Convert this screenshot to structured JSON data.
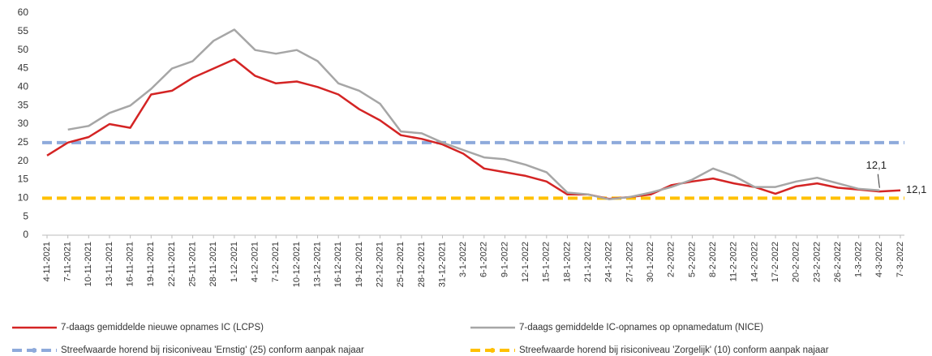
{
  "chart_data": {
    "type": "line",
    "categories": [
      "4-11-2021",
      "7-11-2021",
      "10-11-2021",
      "13-11-2021",
      "16-11-2021",
      "19-11-2021",
      "22-11-2021",
      "25-11-2021",
      "28-11-2021",
      "1-12-2021",
      "4-12-2021",
      "7-12-2021",
      "10-12-2021",
      "13-12-2021",
      "16-12-2021",
      "19-12-2021",
      "22-12-2021",
      "25-12-2021",
      "28-12-2021",
      "31-12-2021",
      "3-1-2022",
      "6-1-2022",
      "9-1-2022",
      "12-1-2022",
      "15-1-2022",
      "18-1-2022",
      "21-1-2022",
      "24-1-2022",
      "27-1-2022",
      "30-1-2022",
      "2-2-2022",
      "5-2-2022",
      "8-2-2022",
      "11-2-2022",
      "14-2-2022",
      "17-2-2022",
      "20-2-2022",
      "23-2-2022",
      "26-2-2022",
      "1-3-2022",
      "4-3-2022",
      "7-3-2022"
    ],
    "series": [
      {
        "name": "7-daags gemiddelde nieuwe opnames IC (LCPS)",
        "color": "#d42424",
        "values": [
          21.5,
          25,
          26.5,
          30,
          29,
          38,
          39,
          42.5,
          45,
          47.5,
          43,
          41,
          41.5,
          40,
          38,
          34,
          31,
          27,
          26,
          24.5,
          22,
          18,
          17,
          16,
          14.5,
          11,
          11,
          9.8,
          10.3,
          11,
          13.5,
          14.5,
          15.3,
          14,
          13,
          11.2,
          13.2,
          14,
          12.8,
          12.3,
          11.8,
          12.1
        ],
        "value_labels": [
          null,
          null,
          null,
          null,
          null,
          null,
          null,
          null,
          null,
          null,
          null,
          null,
          null,
          null,
          null,
          null,
          null,
          null,
          null,
          null,
          null,
          null,
          null,
          null,
          null,
          null,
          null,
          null,
          null,
          null,
          null,
          null,
          null,
          null,
          null,
          null,
          null,
          null,
          null,
          null,
          null,
          "12,1"
        ]
      },
      {
        "name": "7-daags gemiddelde IC-opnames op opnamedatum (NICE)",
        "color": "#a6a6a6",
        "values": [
          null,
          28.5,
          29.5,
          33,
          35,
          39.5,
          45,
          47,
          52.5,
          55.5,
          50,
          49,
          50,
          47,
          41,
          39,
          35.5,
          28,
          27.5,
          25,
          23,
          21,
          20.5,
          19,
          17,
          11.5,
          11,
          9.7,
          10.3,
          11.5,
          13,
          15,
          18,
          16,
          13,
          13,
          14.5,
          15.5,
          14,
          12.5,
          12.1,
          null
        ],
        "value_labels": [
          null,
          null,
          null,
          null,
          null,
          null,
          null,
          null,
          null,
          null,
          null,
          null,
          null,
          null,
          null,
          null,
          null,
          null,
          null,
          null,
          null,
          null,
          null,
          null,
          null,
          null,
          null,
          null,
          null,
          null,
          null,
          null,
          null,
          null,
          null,
          null,
          null,
          null,
          null,
          null,
          "12,1",
          null
        ]
      }
    ],
    "reference_lines": [
      {
        "name": "Streefwaarde horend bij risiconiveau 'Ernstig' (25) conform aanpak najaar",
        "color": "#8eaadb",
        "value": 25
      },
      {
        "name": "Streefwaarde horend bij risiconiveau 'Zorgelijk' (10) conform aanpak najaar",
        "color": "#ffc000",
        "value": 10
      }
    ],
    "ylim": [
      0,
      60
    ],
    "yticks": [
      0,
      5,
      10,
      15,
      20,
      25,
      30,
      35,
      40,
      45,
      50,
      55,
      60
    ],
    "grid": false
  }
}
